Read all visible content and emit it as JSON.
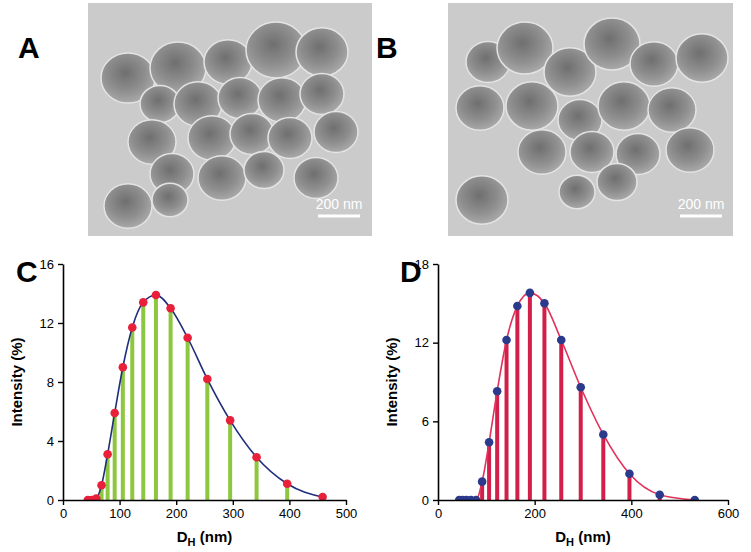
{
  "panels": [
    {
      "label": "A",
      "scale_bar": "200 nm"
    },
    {
      "label": "B",
      "scale_bar": "200 nm"
    }
  ],
  "chart_data": [
    {
      "type": "bar",
      "panel": "C",
      "x": [
        43.8,
        50.8,
        58.8,
        68.1,
        78.8,
        91.3,
        105.7,
        122.4,
        141.8,
        164.2,
        190.1,
        220.2,
        255.0,
        295.3,
        342.0,
        396.1,
        458.7
      ],
      "xlim": [
        0,
        500
      ],
      "xticks": [
        0,
        100,
        200,
        300,
        400,
        500
      ],
      "ylim": [
        0,
        16
      ],
      "yticks": [
        0,
        4,
        8,
        12,
        16
      ],
      "xlabel": [
        {
          "text": "D"
        },
        {
          "text": "H",
          "sub": true
        },
        {
          "text": " (nm)"
        }
      ],
      "ylabel": "Intensity (%)",
      "grid": false,
      "series": [
        {
          "type": "bar",
          "color": "#8dc63f",
          "values": [
            0,
            0,
            0.1,
            1.0,
            3.1,
            5.9,
            9.0,
            11.7,
            13.4,
            13.9,
            13.0,
            11.0,
            8.2,
            5.4,
            2.9,
            1.1,
            0.2
          ]
        },
        {
          "type": "line",
          "color": "#1f2d7b",
          "line_style": "solid",
          "marker": "none",
          "values": [
            0,
            0,
            0.1,
            1.0,
            3.1,
            5.9,
            9.0,
            11.7,
            13.4,
            13.9,
            13.0,
            11.0,
            8.2,
            5.4,
            2.9,
            1.1,
            0.2
          ]
        },
        {
          "type": "scatter",
          "color": "#e8203a",
          "marker": "circle",
          "values": [
            0,
            0,
            0.1,
            1.0,
            3.1,
            5.9,
            9.0,
            11.7,
            13.4,
            13.9,
            13.0,
            11.0,
            8.2,
            5.4,
            2.9,
            1.1,
            0.2
          ]
        }
      ]
    },
    {
      "type": "bar",
      "panel": "D",
      "x": [
        43.8,
        50.8,
        58.8,
        68.1,
        78.8,
        91.3,
        105.7,
        122.4,
        141.8,
        164.2,
        190.1,
        220.2,
        255.0,
        295.3,
        342.0,
        396.1,
        458.7,
        531.2
      ],
      "xlim": [
        0,
        600
      ],
      "xticks": [
        0,
        200,
        400,
        600
      ],
      "ylim": [
        0,
        18
      ],
      "yticks": [
        0,
        6,
        12,
        18
      ],
      "xlabel": [
        {
          "text": "D"
        },
        {
          "text": "H",
          "sub": true
        },
        {
          "text": " (nm)"
        }
      ],
      "ylabel": "Intensity (%)",
      "grid": false,
      "series": [
        {
          "type": "bar",
          "color": "#d2204a",
          "values": [
            0,
            0,
            0,
            0,
            0,
            1.4,
            4.4,
            8.3,
            12.2,
            14.8,
            15.8,
            15.0,
            12.2,
            8.6,
            5.0,
            2.0,
            0.4,
            0
          ]
        },
        {
          "type": "line",
          "color": "#e0325a",
          "line_style": "solid",
          "marker": "none",
          "values": [
            0,
            0,
            0,
            0,
            0,
            1.4,
            4.4,
            8.3,
            12.2,
            14.8,
            15.8,
            15.0,
            12.2,
            8.6,
            5.0,
            2.0,
            0.4,
            0
          ]
        },
        {
          "type": "scatter",
          "color": "#2b3a8c",
          "marker": "circle",
          "values": [
            0,
            0,
            0,
            0,
            0,
            1.4,
            4.4,
            8.3,
            12.2,
            14.8,
            15.8,
            15.0,
            12.2,
            8.6,
            5.0,
            2.0,
            0.4,
            0
          ]
        }
      ]
    }
  ]
}
